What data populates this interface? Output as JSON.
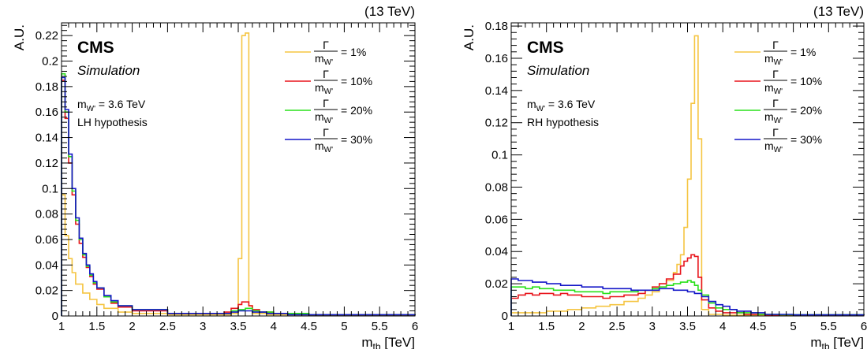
{
  "chart_data": [
    {
      "type": "line",
      "energy_label": "(13 TeV)",
      "experiment": "CMS",
      "sublabel": "Simulation",
      "info_mass": "m",
      "info_mass_sub": "W'",
      "info_mass_value": " = 3.6 TeV",
      "hypothesis": "LH hypothesis",
      "xlabel": "m",
      "xlabel_sub": "tb",
      "xlabel_unit": " [TeV]",
      "ylabel": "A.U.",
      "xlim": [
        1,
        6
      ],
      "ylim": [
        0,
        0.23
      ],
      "xticks": [
        "1",
        "1.5",
        "2",
        "2.5",
        "3",
        "3.5",
        "4",
        "4.5",
        "5",
        "5.5",
        "6"
      ],
      "yticks": [
        "0",
        "0.02",
        "0.04",
        "0.06",
        "0.08",
        "0.1",
        "0.12",
        "0.14",
        "0.16",
        "0.18",
        "0.2",
        "0.22"
      ],
      "legend_position": "top-right",
      "series": [
        {
          "name": "= 1%",
          "color": "#f5c542",
          "points": [
            [
              1.0,
              0.095
            ],
            [
              1.05,
              0.063
            ],
            [
              1.1,
              0.045
            ],
            [
              1.15,
              0.034
            ],
            [
              1.2,
              0.025
            ],
            [
              1.3,
              0.018
            ],
            [
              1.4,
              0.013
            ],
            [
              1.5,
              0.009
            ],
            [
              1.6,
              0.006
            ],
            [
              1.8,
              0.003
            ],
            [
              2.0,
              0.002
            ],
            [
              2.5,
              0.001
            ],
            [
              3.0,
              0.001
            ],
            [
              3.4,
              0.002
            ],
            [
              3.5,
              0.045
            ],
            [
              3.55,
              0.22
            ],
            [
              3.6,
              0.222
            ],
            [
              3.65,
              0.008
            ],
            [
              3.7,
              0.002
            ],
            [
              3.9,
              0.001
            ],
            [
              4.5,
              0.0005
            ],
            [
              6.0,
              0.0005
            ]
          ]
        },
        {
          "name": "= 10%",
          "color": "#e8141b",
          "points": [
            [
              1.0,
              0.185
            ],
            [
              1.05,
              0.155
            ],
            [
              1.1,
              0.12
            ],
            [
              1.15,
              0.095
            ],
            [
              1.2,
              0.072
            ],
            [
              1.25,
              0.057
            ],
            [
              1.3,
              0.046
            ],
            [
              1.35,
              0.038
            ],
            [
              1.4,
              0.031
            ],
            [
              1.45,
              0.025
            ],
            [
              1.5,
              0.021
            ],
            [
              1.6,
              0.015
            ],
            [
              1.7,
              0.01
            ],
            [
              1.8,
              0.007
            ],
            [
              2.0,
              0.004
            ],
            [
              2.5,
              0.002
            ],
            [
              3.0,
              0.002
            ],
            [
              3.3,
              0.003
            ],
            [
              3.4,
              0.006
            ],
            [
              3.5,
              0.009
            ],
            [
              3.55,
              0.011
            ],
            [
              3.65,
              0.008
            ],
            [
              3.7,
              0.005
            ],
            [
              3.8,
              0.003
            ],
            [
              4.0,
              0.002
            ],
            [
              4.5,
              0.0008
            ],
            [
              6.0,
              0.0004
            ]
          ]
        },
        {
          "name": "= 20%",
          "color": "#28e01a",
          "points": [
            [
              1.0,
              0.19
            ],
            [
              1.05,
              0.16
            ],
            [
              1.1,
              0.125
            ],
            [
              1.15,
              0.098
            ],
            [
              1.2,
              0.075
            ],
            [
              1.25,
              0.06
            ],
            [
              1.3,
              0.048
            ],
            [
              1.35,
              0.039
            ],
            [
              1.4,
              0.032
            ],
            [
              1.45,
              0.026
            ],
            [
              1.5,
              0.022
            ],
            [
              1.6,
              0.015
            ],
            [
              1.7,
              0.011
            ],
            [
              1.8,
              0.008
            ],
            [
              2.0,
              0.005
            ],
            [
              2.5,
              0.002
            ],
            [
              3.0,
              0.002
            ],
            [
              3.4,
              0.004
            ],
            [
              3.5,
              0.005
            ],
            [
              3.6,
              0.006
            ],
            [
              3.7,
              0.004
            ],
            [
              3.8,
              0.003
            ],
            [
              4.0,
              0.002
            ],
            [
              4.5,
              0.001
            ],
            [
              6.0,
              0.0005
            ]
          ]
        },
        {
          "name": "= 30%",
          "color": "#1417c8",
          "points": [
            [
              1.0,
              0.187
            ],
            [
              1.05,
              0.162
            ],
            [
              1.1,
              0.127
            ],
            [
              1.15,
              0.1
            ],
            [
              1.2,
              0.077
            ],
            [
              1.25,
              0.061
            ],
            [
              1.3,
              0.049
            ],
            [
              1.35,
              0.04
            ],
            [
              1.4,
              0.033
            ],
            [
              1.45,
              0.027
            ],
            [
              1.5,
              0.022
            ],
            [
              1.6,
              0.016
            ],
            [
              1.7,
              0.012
            ],
            [
              1.8,
              0.008
            ],
            [
              2.0,
              0.005
            ],
            [
              2.5,
              0.002
            ],
            [
              3.0,
              0.002
            ],
            [
              3.4,
              0.003
            ],
            [
              3.5,
              0.004
            ],
            [
              3.6,
              0.004
            ],
            [
              3.7,
              0.003
            ],
            [
              3.9,
              0.002
            ],
            [
              4.2,
              0.001
            ],
            [
              6.0,
              0.0005
            ]
          ]
        }
      ]
    },
    {
      "type": "line",
      "energy_label": "(13 TeV)",
      "experiment": "CMS",
      "sublabel": "Simulation",
      "info_mass": "m",
      "info_mass_sub": "W'",
      "info_mass_value": " = 3.6 TeV",
      "hypothesis": "RH hypothesis",
      "xlabel": "m",
      "xlabel_sub": "tb",
      "xlabel_unit": " [TeV]",
      "ylabel": "A.U.",
      "xlim": [
        1,
        6
      ],
      "ylim": [
        0,
        0.182
      ],
      "xticks": [
        "1",
        "1.5",
        "2",
        "2.5",
        "3",
        "3.5",
        "4",
        "4.5",
        "5",
        "5.5",
        "6"
      ],
      "yticks": [
        "0",
        "0.02",
        "0.04",
        "0.06",
        "0.08",
        "0.1",
        "0.12",
        "0.14",
        "0.16",
        "0.18"
      ],
      "legend_position": "top-right",
      "series": [
        {
          "name": "= 1%",
          "color": "#f5c542",
          "points": [
            [
              1.0,
              0.002
            ],
            [
              1.2,
              0.002
            ],
            [
              1.5,
              0.003
            ],
            [
              1.8,
              0.004
            ],
            [
              2.0,
              0.005
            ],
            [
              2.2,
              0.006
            ],
            [
              2.4,
              0.007
            ],
            [
              2.6,
              0.009
            ],
            [
              2.8,
              0.011
            ],
            [
              2.9,
              0.013
            ],
            [
              3.0,
              0.015
            ],
            [
              3.1,
              0.018
            ],
            [
              3.2,
              0.022
            ],
            [
              3.3,
              0.027
            ],
            [
              3.35,
              0.032
            ],
            [
              3.4,
              0.038
            ],
            [
              3.45,
              0.055
            ],
            [
              3.5,
              0.085
            ],
            [
              3.55,
              0.132
            ],
            [
              3.6,
              0.174
            ],
            [
              3.65,
              0.11
            ],
            [
              3.7,
              0.004
            ],
            [
              3.8,
              0.001
            ],
            [
              4.0,
              0.0005
            ],
            [
              6.0,
              0.0003
            ]
          ]
        },
        {
          "name": "= 10%",
          "color": "#e8141b",
          "points": [
            [
              1.0,
              0.011
            ],
            [
              1.1,
              0.013
            ],
            [
              1.2,
              0.014
            ],
            [
              1.3,
              0.013
            ],
            [
              1.4,
              0.014
            ],
            [
              1.5,
              0.014
            ],
            [
              1.6,
              0.013
            ],
            [
              1.7,
              0.014
            ],
            [
              1.8,
              0.013
            ],
            [
              1.9,
              0.013
            ],
            [
              2.0,
              0.012
            ],
            [
              2.1,
              0.012
            ],
            [
              2.2,
              0.012
            ],
            [
              2.3,
              0.011
            ],
            [
              2.4,
              0.012
            ],
            [
              2.5,
              0.012
            ],
            [
              2.6,
              0.013
            ],
            [
              2.7,
              0.013
            ],
            [
              2.8,
              0.014
            ],
            [
              2.9,
              0.016
            ],
            [
              3.0,
              0.018
            ],
            [
              3.1,
              0.02
            ],
            [
              3.2,
              0.023
            ],
            [
              3.3,
              0.026
            ],
            [
              3.4,
              0.031
            ],
            [
              3.45,
              0.034
            ],
            [
              3.5,
              0.036
            ],
            [
              3.55,
              0.038
            ],
            [
              3.6,
              0.037
            ],
            [
              3.65,
              0.024
            ],
            [
              3.7,
              0.01
            ],
            [
              3.8,
              0.005
            ],
            [
              3.9,
              0.003
            ],
            [
              4.0,
              0.002
            ],
            [
              4.3,
              0.001
            ],
            [
              4.6,
              0.0005
            ],
            [
              6.0,
              0.0003
            ]
          ]
        },
        {
          "name": "= 20%",
          "color": "#28e01a",
          "points": [
            [
              1.0,
              0.018
            ],
            [
              1.1,
              0.018
            ],
            [
              1.2,
              0.017
            ],
            [
              1.3,
              0.018
            ],
            [
              1.4,
              0.017
            ],
            [
              1.5,
              0.017
            ],
            [
              1.6,
              0.016
            ],
            [
              1.7,
              0.016
            ],
            [
              1.8,
              0.016
            ],
            [
              1.9,
              0.015
            ],
            [
              2.0,
              0.015
            ],
            [
              2.1,
              0.015
            ],
            [
              2.2,
              0.015
            ],
            [
              2.3,
              0.014
            ],
            [
              2.4,
              0.015
            ],
            [
              2.5,
              0.015
            ],
            [
              2.6,
              0.015
            ],
            [
              2.7,
              0.015
            ],
            [
              2.8,
              0.016
            ],
            [
              2.9,
              0.016
            ],
            [
              3.0,
              0.017
            ],
            [
              3.1,
              0.018
            ],
            [
              3.2,
              0.019
            ],
            [
              3.3,
              0.02
            ],
            [
              3.4,
              0.021
            ],
            [
              3.5,
              0.022
            ],
            [
              3.55,
              0.021
            ],
            [
              3.6,
              0.019
            ],
            [
              3.65,
              0.016
            ],
            [
              3.7,
              0.013
            ],
            [
              3.8,
              0.008
            ],
            [
              3.9,
              0.005
            ],
            [
              4.0,
              0.004
            ],
            [
              4.2,
              0.002
            ],
            [
              4.5,
              0.001
            ],
            [
              4.8,
              0.0008
            ],
            [
              6.0,
              0.0005
            ]
          ]
        },
        {
          "name": "= 30%",
          "color": "#1417c8",
          "points": [
            [
              1.0,
              0.023
            ],
            [
              1.1,
              0.022
            ],
            [
              1.2,
              0.022
            ],
            [
              1.3,
              0.021
            ],
            [
              1.4,
              0.021
            ],
            [
              1.5,
              0.02
            ],
            [
              1.6,
              0.02
            ],
            [
              1.7,
              0.019
            ],
            [
              1.8,
              0.019
            ],
            [
              1.9,
              0.019
            ],
            [
              2.0,
              0.018
            ],
            [
              2.1,
              0.018
            ],
            [
              2.2,
              0.018
            ],
            [
              2.3,
              0.017
            ],
            [
              2.4,
              0.017
            ],
            [
              2.5,
              0.017
            ],
            [
              2.6,
              0.017
            ],
            [
              2.7,
              0.016
            ],
            [
              2.8,
              0.016
            ],
            [
              2.9,
              0.016
            ],
            [
              3.0,
              0.016
            ],
            [
              3.1,
              0.017
            ],
            [
              3.2,
              0.017
            ],
            [
              3.3,
              0.016
            ],
            [
              3.4,
              0.016
            ],
            [
              3.5,
              0.015
            ],
            [
              3.6,
              0.014
            ],
            [
              3.7,
              0.012
            ],
            [
              3.8,
              0.009
            ],
            [
              3.9,
              0.007
            ],
            [
              4.0,
              0.006
            ],
            [
              4.1,
              0.004
            ],
            [
              4.2,
              0.003
            ],
            [
              4.4,
              0.002
            ],
            [
              4.6,
              0.001
            ],
            [
              5.0,
              0.0007
            ],
            [
              6.0,
              0.0005
            ]
          ]
        }
      ]
    }
  ]
}
